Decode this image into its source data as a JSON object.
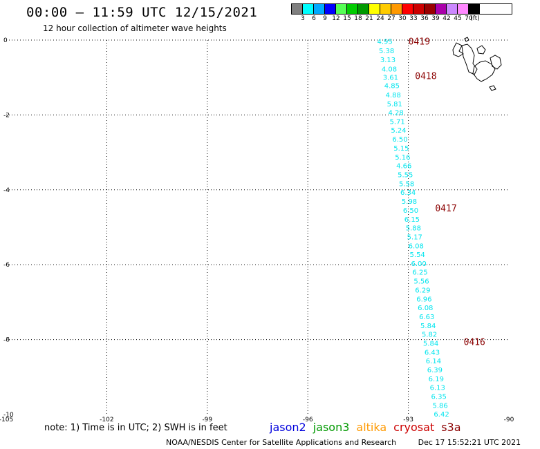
{
  "header": {
    "title": "00:00 – 11:59 UTC 12/15/2021",
    "subtitle": "12 hour collection of altimeter wave heights"
  },
  "legend": {
    "unit": "(ft)",
    "bins": [
      {
        "label": "3",
        "color": "#808080"
      },
      {
        "label": "6",
        "color": "#00ffff"
      },
      {
        "label": "9",
        "color": "#00aaff"
      },
      {
        "label": "12",
        "color": "#0000ff"
      },
      {
        "label": "15",
        "color": "#55ff55"
      },
      {
        "label": "18",
        "color": "#00cc00"
      },
      {
        "label": "21",
        "color": "#009900"
      },
      {
        "label": "24",
        "color": "#ffff00"
      },
      {
        "label": "27",
        "color": "#ffcc00"
      },
      {
        "label": "30",
        "color": "#ff9900"
      },
      {
        "label": "33",
        "color": "#ff0000"
      },
      {
        "label": "36",
        "color": "#cc0000"
      },
      {
        "label": "39",
        "color": "#990000"
      },
      {
        "label": "42",
        "color": "#aa00aa"
      },
      {
        "label": "45",
        "color": "#cc88ff"
      },
      {
        "label": "70",
        "color": "#ff88ff"
      },
      {
        "label": "",
        "color": "#000000"
      }
    ]
  },
  "chart_data": {
    "type": "scatter",
    "xlim": [
      -105,
      -90
    ],
    "ylim": [
      -10,
      0
    ],
    "x_ticks": [
      -105,
      -102,
      -99,
      -96,
      -93,
      -90
    ],
    "y_ticks": [
      0,
      -2,
      -4,
      -6,
      -8,
      -10
    ],
    "grid": true,
    "point_color": "#00e5ee",
    "time_label_color": "#8b0000",
    "points": [
      {
        "lon": -93.93,
        "lat": -0.03,
        "swh": "4.95"
      },
      {
        "lon": -93.88,
        "lat": -0.28,
        "swh": "5.38"
      },
      {
        "lon": -93.84,
        "lat": -0.52,
        "swh": "3.13"
      },
      {
        "lon": -93.8,
        "lat": -0.77,
        "swh": "4.08"
      },
      {
        "lon": -93.76,
        "lat": -0.99,
        "swh": "3.61"
      },
      {
        "lon": -93.72,
        "lat": -1.21,
        "swh": "4.85"
      },
      {
        "lon": -93.68,
        "lat": -1.46,
        "swh": "4.88"
      },
      {
        "lon": -93.64,
        "lat": -1.7,
        "swh": "5.81"
      },
      {
        "lon": -93.6,
        "lat": -1.93,
        "swh": "4.28"
      },
      {
        "lon": -93.56,
        "lat": -2.17,
        "swh": "5.71"
      },
      {
        "lon": -93.52,
        "lat": -2.4,
        "swh": "5.24"
      },
      {
        "lon": -93.48,
        "lat": -2.64,
        "swh": "6.50"
      },
      {
        "lon": -93.44,
        "lat": -2.88,
        "swh": "5.15"
      },
      {
        "lon": -93.4,
        "lat": -3.12,
        "swh": "5.16"
      },
      {
        "lon": -93.36,
        "lat": -3.35,
        "swh": "4.66"
      },
      {
        "lon": -93.32,
        "lat": -3.59,
        "swh": "5.55"
      },
      {
        "lon": -93.28,
        "lat": -3.83,
        "swh": "5.58"
      },
      {
        "lon": -93.24,
        "lat": -4.06,
        "swh": "6.34"
      },
      {
        "lon": -93.2,
        "lat": -4.3,
        "swh": "5.98"
      },
      {
        "lon": -93.16,
        "lat": -4.54,
        "swh": "6.50"
      },
      {
        "lon": -93.12,
        "lat": -4.78,
        "swh": "6.15"
      },
      {
        "lon": -93.08,
        "lat": -5.01,
        "swh": "5.88"
      },
      {
        "lon": -93.04,
        "lat": -5.25,
        "swh": "5.17"
      },
      {
        "lon": -93.0,
        "lat": -5.49,
        "swh": "6.08"
      },
      {
        "lon": -92.96,
        "lat": -5.72,
        "swh": "5.54"
      },
      {
        "lon": -92.92,
        "lat": -5.96,
        "swh": "6.00"
      },
      {
        "lon": -92.88,
        "lat": -6.19,
        "swh": "6.25"
      },
      {
        "lon": -92.84,
        "lat": -6.43,
        "swh": "5.56"
      },
      {
        "lon": -92.8,
        "lat": -6.67,
        "swh": "6.29"
      },
      {
        "lon": -92.76,
        "lat": -6.91,
        "swh": "6.96"
      },
      {
        "lon": -92.72,
        "lat": -7.14,
        "swh": "6.08"
      },
      {
        "lon": -92.68,
        "lat": -7.38,
        "swh": "6.63"
      },
      {
        "lon": -92.64,
        "lat": -7.62,
        "swh": "5.84"
      },
      {
        "lon": -92.6,
        "lat": -7.85,
        "swh": "5.82"
      },
      {
        "lon": -92.56,
        "lat": -8.09,
        "swh": "5.84"
      },
      {
        "lon": -92.52,
        "lat": -8.33,
        "swh": "6.43"
      },
      {
        "lon": -92.48,
        "lat": -8.56,
        "swh": "6.14"
      },
      {
        "lon": -92.44,
        "lat": -8.8,
        "swh": "6.39"
      },
      {
        "lon": -92.4,
        "lat": -9.04,
        "swh": "6.19"
      },
      {
        "lon": -92.36,
        "lat": -9.27,
        "swh": "6.13"
      },
      {
        "lon": -92.32,
        "lat": -9.51,
        "swh": "6.35"
      },
      {
        "lon": -92.28,
        "lat": -9.75,
        "swh": "5.86"
      },
      {
        "lon": -92.24,
        "lat": -9.98,
        "swh": "6.42"
      }
    ],
    "time_labels": [
      {
        "lon": -93.0,
        "lat": -0.03,
        "text": "0419"
      },
      {
        "lon": -92.8,
        "lat": -0.95,
        "text": "0418"
      },
      {
        "lon": -92.2,
        "lat": -4.48,
        "text": "0417"
      },
      {
        "lon": -91.35,
        "lat": -8.05,
        "text": "0416"
      }
    ]
  },
  "note": "note: 1) Time is in UTC; 2) SWH is in feet",
  "satellites": [
    {
      "name": "jason2",
      "color": "#0000dd"
    },
    {
      "name": "jason3",
      "color": "#009900"
    },
    {
      "name": "altika",
      "color": "#ff9900"
    },
    {
      "name": "cryosat",
      "color": "#cc0000"
    },
    {
      "name": "s3a",
      "color": "#8b0000"
    }
  ],
  "footer": {
    "center": "NOAA/NESDIS Center for Satellite Applications and Research",
    "timestamp": "Dec 17 15:52:21 UTC 2021"
  }
}
